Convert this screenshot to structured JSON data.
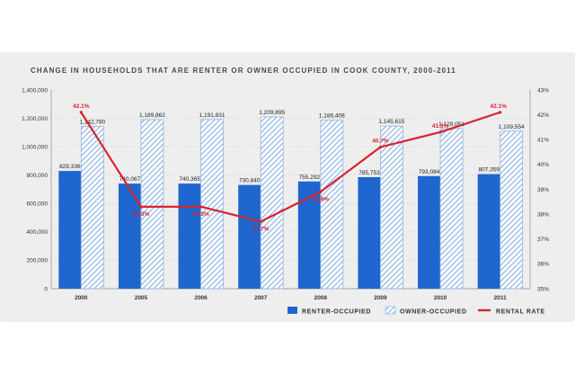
{
  "chart_data": {
    "type": "bar",
    "title": "CHANGE IN HOUSEHOLDS THAT ARE RENTER OR OWNER OCCUPIED IN COOK COUNTY, 2000-2011",
    "categories": [
      "2000",
      "2005",
      "2006",
      "2007",
      "2008",
      "2009",
      "2010",
      "2011"
    ],
    "series": [
      {
        "name": "RENTER-OCCUPIED",
        "values": [
          829336,
          740067,
          740365,
          730840,
          755292,
          785753,
          793084,
          807359
        ],
        "labels": [
          "829,336",
          "740,067",
          "740,365",
          "730,840",
          "755,292",
          "785,753",
          "793,084",
          "807,359"
        ],
        "color": "#1f66cf"
      },
      {
        "name": "OWNER-OCCUPIED",
        "values": [
          1142780,
          1189862,
          1191831,
          1209895,
          1186408,
          1145615,
          1129051,
          1109554
        ],
        "labels": [
          "1,142,780",
          "1,189,862",
          "1,191,831",
          "1,209,895",
          "1,186,408",
          "1,145,615",
          "1,129,051",
          "1,109,554"
        ],
        "color": "#8fb6e6"
      },
      {
        "name": "RENTAL RATE",
        "axis": "right",
        "values": [
          42.1,
          38.3,
          38.3,
          37.7,
          38.9,
          40.7,
          41.3,
          42.1
        ],
        "labels": [
          "42.1%",
          "38.3%",
          "38.3%",
          "37.7%",
          "38.9%",
          "40.7%",
          "41.3%",
          "42.1%"
        ],
        "color": "#d9232e"
      }
    ],
    "ylim": [
      0,
      1400000
    ],
    "y_ticks": [
      "0",
      "200,000",
      "400,000",
      "600,000",
      "800,000",
      "1,000,000",
      "1,200,000",
      "1,400,000"
    ],
    "y2lim": [
      35,
      43
    ],
    "y2_ticks": [
      "35%",
      "36%",
      "37%",
      "38%",
      "39%",
      "40%",
      "41%",
      "42%",
      "43%"
    ],
    "legend": [
      "RENTER-OCCUPIED",
      "OWNER-OCCUPIED",
      "RENTAL RATE"
    ],
    "legend_position": "bottom-right",
    "grid": true
  }
}
